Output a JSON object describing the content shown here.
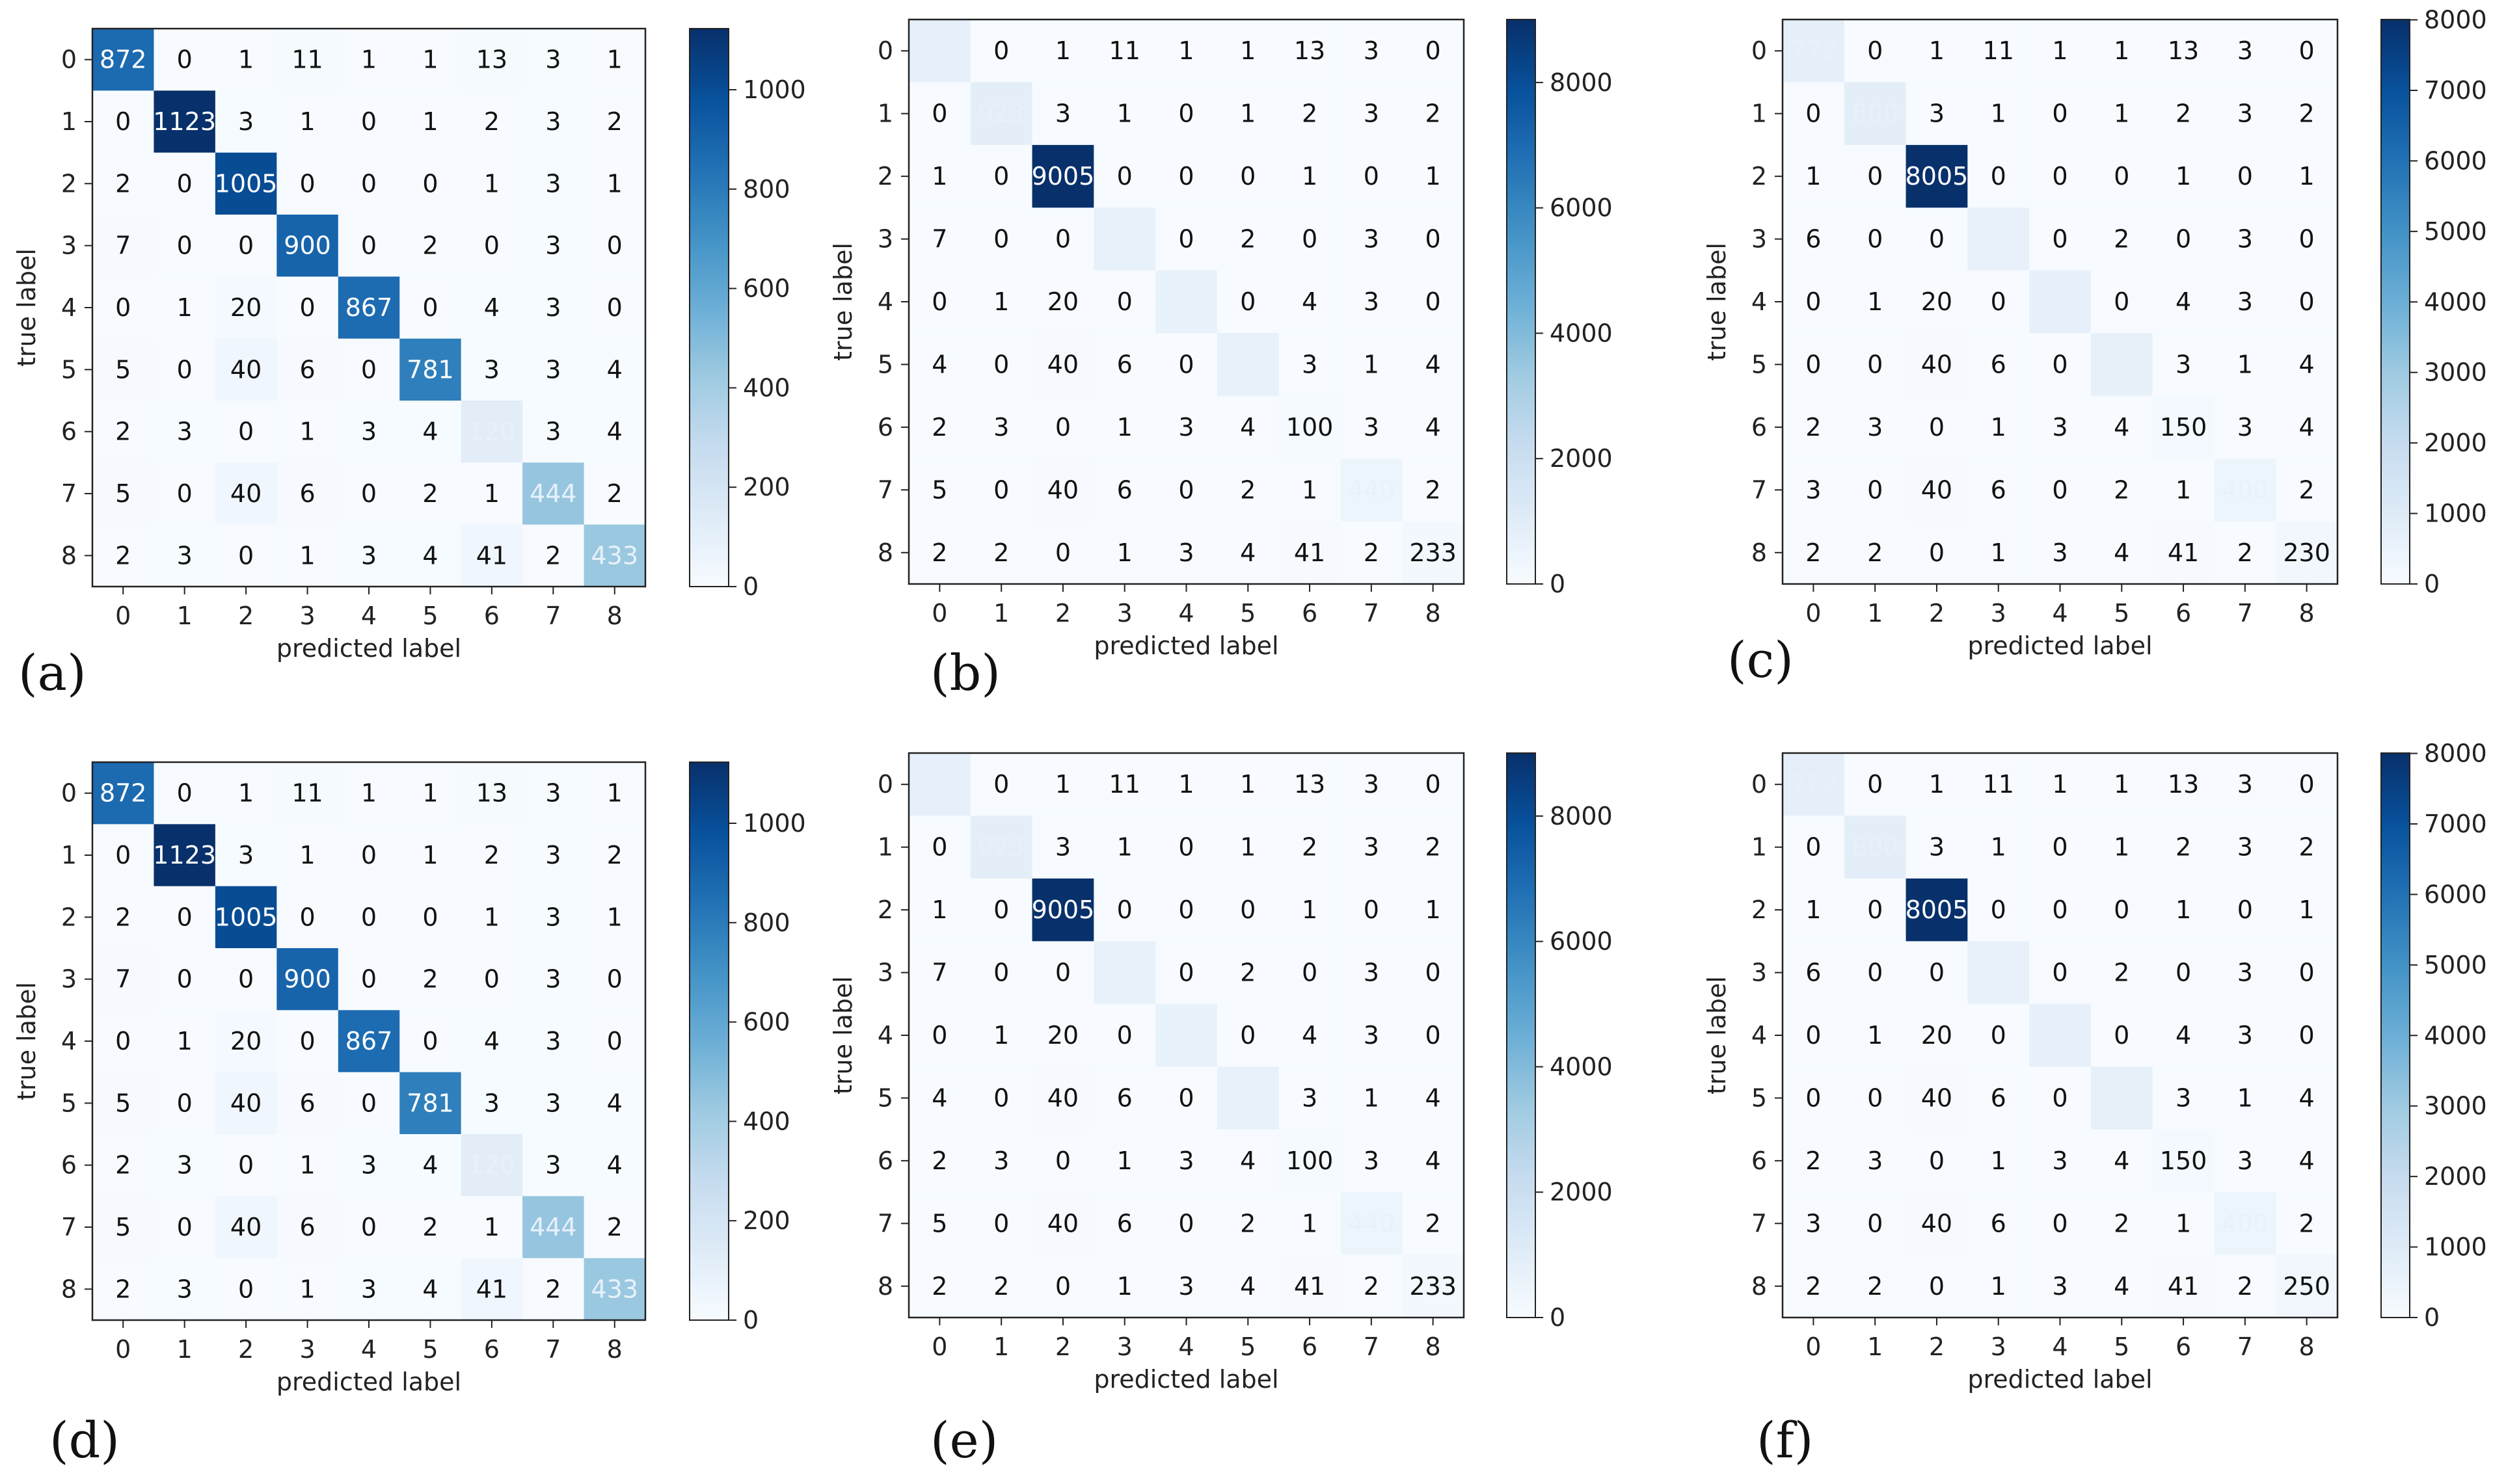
{
  "figure": {
    "panel_labels": [
      "(a)",
      "(b)",
      "(c)",
      "(d)",
      "(e)",
      "(f)"
    ]
  },
  "chart_data": [
    {
      "type": "heatmap",
      "panel": "(a)",
      "xlabel": "predicted label",
      "ylabel": "true label",
      "tick_labels": [
        "0",
        "1",
        "2",
        "3",
        "4",
        "5",
        "6",
        "7",
        "8"
      ],
      "colorbar": {
        "colormap": "Blues",
        "min": 0,
        "max": 1123,
        "ticks": [
          0,
          200,
          400,
          600,
          800,
          1000
        ]
      },
      "matrix": [
        [
          872,
          0,
          1,
          11,
          1,
          1,
          13,
          3,
          1
        ],
        [
          0,
          1123,
          3,
          1,
          0,
          1,
          2,
          3,
          2
        ],
        [
          2,
          0,
          1005,
          0,
          0,
          0,
          1,
          3,
          1
        ],
        [
          7,
          0,
          0,
          900,
          0,
          2,
          0,
          3,
          0
        ],
        [
          0,
          1,
          20,
          0,
          867,
          0,
          4,
          3,
          0
        ],
        [
          5,
          0,
          40,
          6,
          0,
          781,
          3,
          3,
          4
        ],
        [
          2,
          3,
          0,
          1,
          3,
          4,
          120,
          3,
          4
        ],
        [
          5,
          0,
          40,
          6,
          0,
          2,
          1,
          444,
          2
        ],
        [
          2,
          3,
          0,
          1,
          3,
          4,
          41,
          2,
          433
        ]
      ]
    },
    {
      "type": "heatmap",
      "panel": "(b)",
      "xlabel": "predicted label",
      "ylabel": "true label",
      "tick_labels": [
        "0",
        "1",
        "2",
        "3",
        "4",
        "5",
        "6",
        "7",
        "8"
      ],
      "colorbar": {
        "colormap": "Blues",
        "min": 0,
        "max": 9005,
        "ticks": [
          0,
          2000,
          4000,
          6000,
          8000
        ]
      },
      "matrix": [
        [
          772,
          0,
          1,
          11,
          1,
          1,
          13,
          3,
          0
        ],
        [
          0,
          923,
          3,
          1,
          0,
          1,
          2,
          3,
          2
        ],
        [
          1,
          0,
          9005,
          0,
          0,
          0,
          1,
          0,
          1
        ],
        [
          7,
          0,
          0,
          700,
          0,
          2,
          0,
          3,
          0
        ],
        [
          0,
          1,
          20,
          0,
          667,
          0,
          4,
          3,
          0
        ],
        [
          4,
          0,
          40,
          6,
          0,
          723,
          3,
          1,
          4
        ],
        [
          2,
          3,
          0,
          1,
          3,
          4,
          100,
          3,
          4
        ],
        [
          5,
          0,
          40,
          6,
          0,
          2,
          1,
          440,
          2
        ],
        [
          2,
          2,
          0,
          1,
          3,
          4,
          41,
          2,
          233
        ]
      ]
    },
    {
      "type": "heatmap",
      "panel": "(c)",
      "xlabel": "predicted label",
      "ylabel": "true label",
      "tick_labels": [
        "0",
        "1",
        "2",
        "3",
        "4",
        "5",
        "6",
        "7",
        "8"
      ],
      "colorbar": {
        "colormap": "Blues",
        "min": 0,
        "max": 8005,
        "ticks": [
          0,
          1000,
          2000,
          3000,
          4000,
          5000,
          6000,
          7000,
          8000
        ]
      },
      "matrix": [
        [
          772,
          0,
          1,
          11,
          1,
          1,
          13,
          3,
          0
        ],
        [
          0,
          800,
          3,
          1,
          0,
          1,
          2,
          3,
          2
        ],
        [
          1,
          0,
          8005,
          0,
          0,
          0,
          1,
          0,
          1
        ],
        [
          6,
          0,
          0,
          600,
          0,
          2,
          0,
          3,
          0
        ],
        [
          0,
          1,
          20,
          0,
          660,
          0,
          4,
          3,
          0
        ],
        [
          0,
          0,
          40,
          6,
          0,
          700,
          3,
          1,
          4
        ],
        [
          2,
          3,
          0,
          1,
          3,
          4,
          150,
          3,
          4
        ],
        [
          3,
          0,
          40,
          6,
          0,
          2,
          1,
          400,
          2
        ],
        [
          2,
          2,
          0,
          1,
          3,
          4,
          41,
          2,
          230
        ]
      ]
    },
    {
      "type": "heatmap",
      "panel": "(d)",
      "xlabel": "predicted label",
      "ylabel": "true label",
      "tick_labels": [
        "0",
        "1",
        "2",
        "3",
        "4",
        "5",
        "6",
        "7",
        "8"
      ],
      "colorbar": {
        "colormap": "Blues",
        "min": 0,
        "max": 1123,
        "ticks": [
          0,
          200,
          400,
          600,
          800,
          1000
        ]
      },
      "matrix": [
        [
          872,
          0,
          1,
          11,
          1,
          1,
          13,
          3,
          1
        ],
        [
          0,
          1123,
          3,
          1,
          0,
          1,
          2,
          3,
          2
        ],
        [
          2,
          0,
          1005,
          0,
          0,
          0,
          1,
          3,
          1
        ],
        [
          7,
          0,
          0,
          900,
          0,
          2,
          0,
          3,
          0
        ],
        [
          0,
          1,
          20,
          0,
          867,
          0,
          4,
          3,
          0
        ],
        [
          5,
          0,
          40,
          6,
          0,
          781,
          3,
          3,
          4
        ],
        [
          2,
          3,
          0,
          1,
          3,
          4,
          120,
          3,
          4
        ],
        [
          5,
          0,
          40,
          6,
          0,
          2,
          1,
          444,
          2
        ],
        [
          2,
          3,
          0,
          1,
          3,
          4,
          41,
          2,
          433
        ]
      ]
    },
    {
      "type": "heatmap",
      "panel": "(e)",
      "xlabel": "predicted label",
      "ylabel": "true label",
      "tick_labels": [
        "0",
        "1",
        "2",
        "3",
        "4",
        "5",
        "6",
        "7",
        "8"
      ],
      "colorbar": {
        "colormap": "Blues",
        "min": 0,
        "max": 9005,
        "ticks": [
          0,
          2000,
          4000,
          6000,
          8000
        ]
      },
      "matrix": [
        [
          772,
          0,
          1,
          11,
          1,
          1,
          13,
          3,
          0
        ],
        [
          0,
          923,
          3,
          1,
          0,
          1,
          2,
          3,
          2
        ],
        [
          1,
          0,
          9005,
          0,
          0,
          0,
          1,
          0,
          1
        ],
        [
          7,
          0,
          0,
          700,
          0,
          2,
          0,
          3,
          0
        ],
        [
          0,
          1,
          20,
          0,
          667,
          0,
          4,
          3,
          0
        ],
        [
          4,
          0,
          40,
          6,
          0,
          723,
          3,
          1,
          4
        ],
        [
          2,
          3,
          0,
          1,
          3,
          4,
          100,
          3,
          4
        ],
        [
          5,
          0,
          40,
          6,
          0,
          2,
          1,
          440,
          2
        ],
        [
          2,
          2,
          0,
          1,
          3,
          4,
          41,
          2,
          233
        ]
      ]
    },
    {
      "type": "heatmap",
      "panel": "(f)",
      "xlabel": "predicted label",
      "ylabel": "true label",
      "tick_labels": [
        "0",
        "1",
        "2",
        "3",
        "4",
        "5",
        "6",
        "7",
        "8"
      ],
      "colorbar": {
        "colormap": "Blues",
        "min": 0,
        "max": 8005,
        "ticks": [
          0,
          1000,
          2000,
          3000,
          4000,
          5000,
          6000,
          7000,
          8000
        ]
      },
      "matrix": [
        [
          772,
          0,
          1,
          11,
          1,
          1,
          13,
          3,
          0
        ],
        [
          0,
          800,
          3,
          1,
          0,
          1,
          2,
          3,
          2
        ],
        [
          1,
          0,
          8005,
          0,
          0,
          0,
          1,
          0,
          1
        ],
        [
          6,
          0,
          0,
          600,
          0,
          2,
          0,
          3,
          0
        ],
        [
          0,
          1,
          20,
          0,
          660,
          0,
          4,
          3,
          0
        ],
        [
          0,
          0,
          40,
          6,
          0,
          700,
          3,
          1,
          4
        ],
        [
          2,
          3,
          0,
          1,
          3,
          4,
          150,
          3,
          4
        ],
        [
          3,
          0,
          40,
          6,
          0,
          2,
          1,
          400,
          2
        ],
        [
          2,
          2,
          0,
          1,
          3,
          4,
          41,
          2,
          250
        ]
      ]
    }
  ]
}
